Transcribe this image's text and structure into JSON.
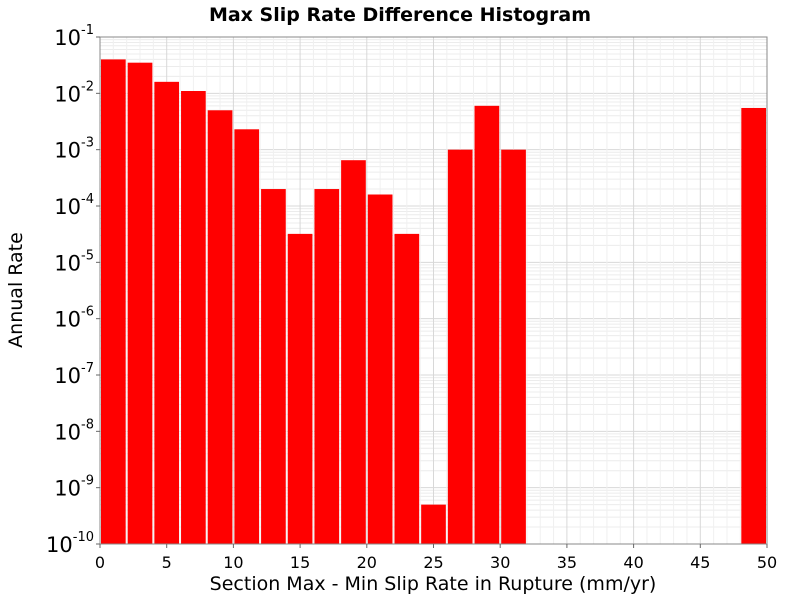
{
  "chart_data": {
    "type": "bar",
    "title": "Max Slip Rate Difference Histogram",
    "xlabel": "Section Max - Min Slip Rate in Rupture (mm/yr)",
    "ylabel": "Annual Rate",
    "xlim": [
      0,
      50
    ],
    "ylim": [
      1e-10,
      0.1
    ],
    "y_scale": "log",
    "grid": true,
    "bar_color": "#ff0000",
    "x_ticks": [
      "0",
      "5",
      "10",
      "15",
      "20",
      "25",
      "30",
      "35",
      "40",
      "45",
      "50"
    ],
    "y_ticks": [
      {
        "base": "10",
        "exp": "-1"
      },
      {
        "base": "10",
        "exp": "-2"
      },
      {
        "base": "10",
        "exp": "-3"
      },
      {
        "base": "10",
        "exp": "-4"
      },
      {
        "base": "10",
        "exp": "-5"
      },
      {
        "base": "10",
        "exp": "-6"
      },
      {
        "base": "10",
        "exp": "-7"
      },
      {
        "base": "10",
        "exp": "-8"
      },
      {
        "base": "10",
        "exp": "-9"
      },
      {
        "base": "10",
        "exp": "-10"
      }
    ],
    "bins": [
      {
        "x0": 0,
        "x1": 2,
        "value": 0.04
      },
      {
        "x0": 2,
        "x1": 4,
        "value": 0.035
      },
      {
        "x0": 4,
        "x1": 6,
        "value": 0.016
      },
      {
        "x0": 6,
        "x1": 8,
        "value": 0.011
      },
      {
        "x0": 8,
        "x1": 10,
        "value": 0.005
      },
      {
        "x0": 10,
        "x1": 12,
        "value": 0.0023
      },
      {
        "x0": 12,
        "x1": 14,
        "value": 0.0002
      },
      {
        "x0": 14,
        "x1": 16,
        "value": 3.2e-05
      },
      {
        "x0": 16,
        "x1": 18,
        "value": 0.0002
      },
      {
        "x0": 18,
        "x1": 20,
        "value": 0.00065
      },
      {
        "x0": 20,
        "x1": 22,
        "value": 0.00016
      },
      {
        "x0": 22,
        "x1": 24,
        "value": 3.2e-05
      },
      {
        "x0": 24,
        "x1": 26,
        "value": 5e-10
      },
      {
        "x0": 26,
        "x1": 28,
        "value": 0.001
      },
      {
        "x0": 28,
        "x1": 30,
        "value": 0.006
      },
      {
        "x0": 30,
        "x1": 32,
        "value": 0.001
      },
      {
        "x0": 48,
        "x1": 50,
        "value": 0.0055
      }
    ]
  }
}
